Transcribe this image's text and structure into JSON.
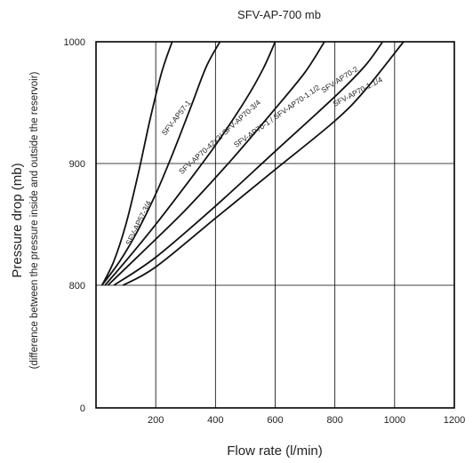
{
  "chart_data": {
    "type": "line",
    "title": "SFV-AP-700 mb",
    "xlabel": "Flow rate (l/min)",
    "ylabel": "Pressure drop (mb)",
    "ylabel_sub": "(difference between the pressure inside and outside the reservoir)",
    "xlim": [
      0,
      1200
    ],
    "ylim": [
      0,
      1000
    ],
    "x_ticks": [
      "200",
      "400",
      "600",
      "800",
      "1000",
      "1200"
    ],
    "y_ticks": [
      "0",
      "800",
      "900",
      "1000"
    ],
    "y_scale_note": "broken axis: 0 then 800-1000",
    "grid": true,
    "series": [
      {
        "name": "SFV-AP57-3/4",
        "x": [
          20,
          60,
          100,
          140,
          180,
          220,
          255
        ],
        "y": [
          800,
          820,
          850,
          890,
          935,
          975,
          1000
        ]
      },
      {
        "name": "SFV-AP57-1",
        "x": [
          20,
          80,
          140,
          200,
          260,
          320,
          370,
          415
        ],
        "y": [
          800,
          820,
          845,
          875,
          910,
          948,
          980,
          1000
        ]
      },
      {
        "name": "SFV-AP70-42x2/ SFV-AP70-3/4",
        "x": [
          30,
          100,
          200,
          300,
          400,
          500,
          560,
          600
        ],
        "y": [
          800,
          820,
          850,
          882,
          915,
          952,
          978,
          1000
        ]
      },
      {
        "name": "SFV-AP70-1 / SFV-AP70-1.1/2",
        "x": [
          40,
          150,
          300,
          450,
          600,
          700,
          765
        ],
        "y": [
          800,
          826,
          862,
          902,
          945,
          975,
          1000
        ]
      },
      {
        "name": "SFV-AP70-2",
        "x": [
          60,
          200,
          400,
          600,
          800,
          900,
          960
        ],
        "y": [
          800,
          823,
          865,
          910,
          955,
          980,
          1000
        ]
      },
      {
        "name": "SFV-AP70-1.1/4",
        "x": [
          90,
          200,
          400,
          600,
          800,
          900,
          1030
        ],
        "y": [
          800,
          815,
          855,
          895,
          935,
          960,
          1000
        ]
      }
    ]
  }
}
